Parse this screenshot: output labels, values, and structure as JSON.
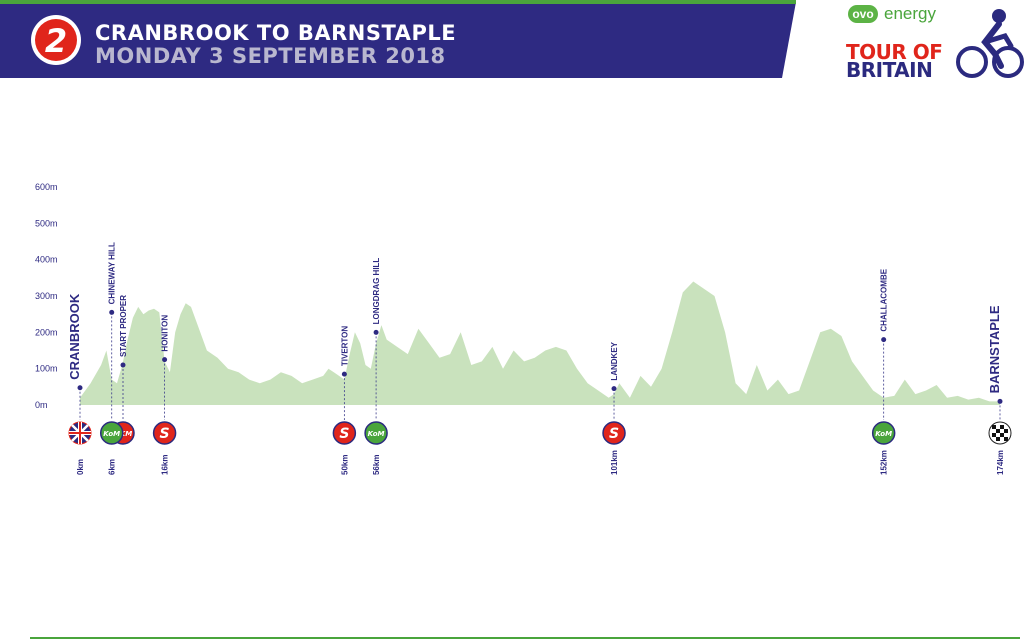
{
  "header": {
    "stage_number": "2",
    "title": "CRANBROOK TO BARNSTAPLE",
    "date": "MONDAY 3 SEPTEMBER 2018"
  },
  "logo": {
    "ovo": "ovo",
    "energy": "energy",
    "tour_line1": "TOUR OF",
    "tour_line2": "BRITAIN"
  },
  "colors": {
    "banner": "#2e2a82",
    "banner_stripe": "#4aa53c",
    "profile_fill": "#c9e2bd",
    "marker_line": "#3a3a8a",
    "sprint": "#e0251b",
    "kom": "#4aa53c"
  },
  "chart_data": {
    "type": "area",
    "ylabel_ticks": [
      "600m",
      "500m",
      "400m",
      "300m",
      "200m",
      "100m",
      "0m"
    ],
    "ytick_values": [
      600,
      500,
      400,
      300,
      200,
      100,
      0
    ],
    "ylim": [
      0,
      600
    ],
    "xlim": [
      0,
      174
    ],
    "distance_km": [
      0,
      2,
      4,
      5,
      6,
      7,
      8,
      9,
      10,
      11,
      12,
      13,
      14,
      15,
      16,
      17,
      18,
      19,
      20,
      21,
      22,
      24,
      26,
      28,
      30,
      32,
      34,
      36,
      38,
      40,
      42,
      44,
      46,
      47,
      48,
      49,
      50,
      51,
      52,
      53,
      54,
      55,
      56,
      57,
      58,
      60,
      62,
      64,
      66,
      68,
      70,
      72,
      74,
      76,
      78,
      80,
      82,
      84,
      86,
      88,
      90,
      92,
      94,
      96,
      98,
      100,
      101,
      102,
      103,
      104,
      106,
      108,
      110,
      112,
      114,
      116,
      118,
      120,
      122,
      124,
      126,
      128,
      130,
      132,
      134,
      136,
      138,
      140,
      142,
      144,
      146,
      148,
      150,
      152,
      154,
      156,
      158,
      160,
      162,
      164,
      166,
      168,
      170,
      172,
      174
    ],
    "elevation_m": [
      20,
      60,
      110,
      150,
      70,
      60,
      110,
      180,
      240,
      270,
      250,
      260,
      265,
      255,
      120,
      90,
      200,
      250,
      280,
      270,
      230,
      150,
      130,
      100,
      90,
      70,
      60,
      70,
      90,
      80,
      60,
      70,
      80,
      100,
      90,
      80,
      70,
      140,
      200,
      170,
      110,
      100,
      170,
      220,
      180,
      160,
      140,
      210,
      170,
      130,
      140,
      200,
      110,
      120,
      160,
      100,
      150,
      120,
      130,
      150,
      160,
      150,
      100,
      60,
      40,
      20,
      30,
      60,
      40,
      20,
      80,
      50,
      100,
      200,
      310,
      340,
      320,
      300,
      200,
      60,
      30,
      110,
      40,
      70,
      30,
      40,
      120,
      200,
      210,
      190,
      120,
      80,
      40,
      20,
      25,
      70,
      30,
      40,
      55,
      20,
      25,
      15,
      20,
      10,
      10
    ],
    "markers": [
      {
        "km": 0,
        "elevation": 20,
        "name": "CRANBROOK",
        "km_label": "0km",
        "icon": "union-flag-icon"
      },
      {
        "km": 0,
        "elevation": 110,
        "name": "START PROPER",
        "km_label": "",
        "icon": "okm-icon"
      },
      {
        "km": 6,
        "elevation": 255,
        "name": "CHINEWAY HILL",
        "km_label": "6km",
        "icon": "kom-icon"
      },
      {
        "km": 16,
        "elevation": 125,
        "name": "HONITON",
        "km_label": "16km",
        "icon": "sprint-icon"
      },
      {
        "km": 50,
        "elevation": 85,
        "name": "TIVERTON",
        "km_label": "50km",
        "icon": "sprint-icon"
      },
      {
        "km": 56,
        "elevation": 200,
        "name": "LONGDRAG HILL",
        "km_label": "56km",
        "icon": "kom-icon"
      },
      {
        "km": 101,
        "elevation": 45,
        "name": "LANDKEY",
        "km_label": "101km",
        "icon": "sprint-icon"
      },
      {
        "km": 152,
        "elevation": 180,
        "name": "CHALLACOMBE",
        "km_label": "152km",
        "icon": "kom-icon"
      },
      {
        "km": 174,
        "elevation": 10,
        "name": "BARNSTAPLE",
        "km_label": "174km",
        "icon": "finish-flag-icon"
      }
    ],
    "icon_text": {
      "okm": "OKM",
      "kom": "KoM",
      "sprint": "S"
    }
  }
}
